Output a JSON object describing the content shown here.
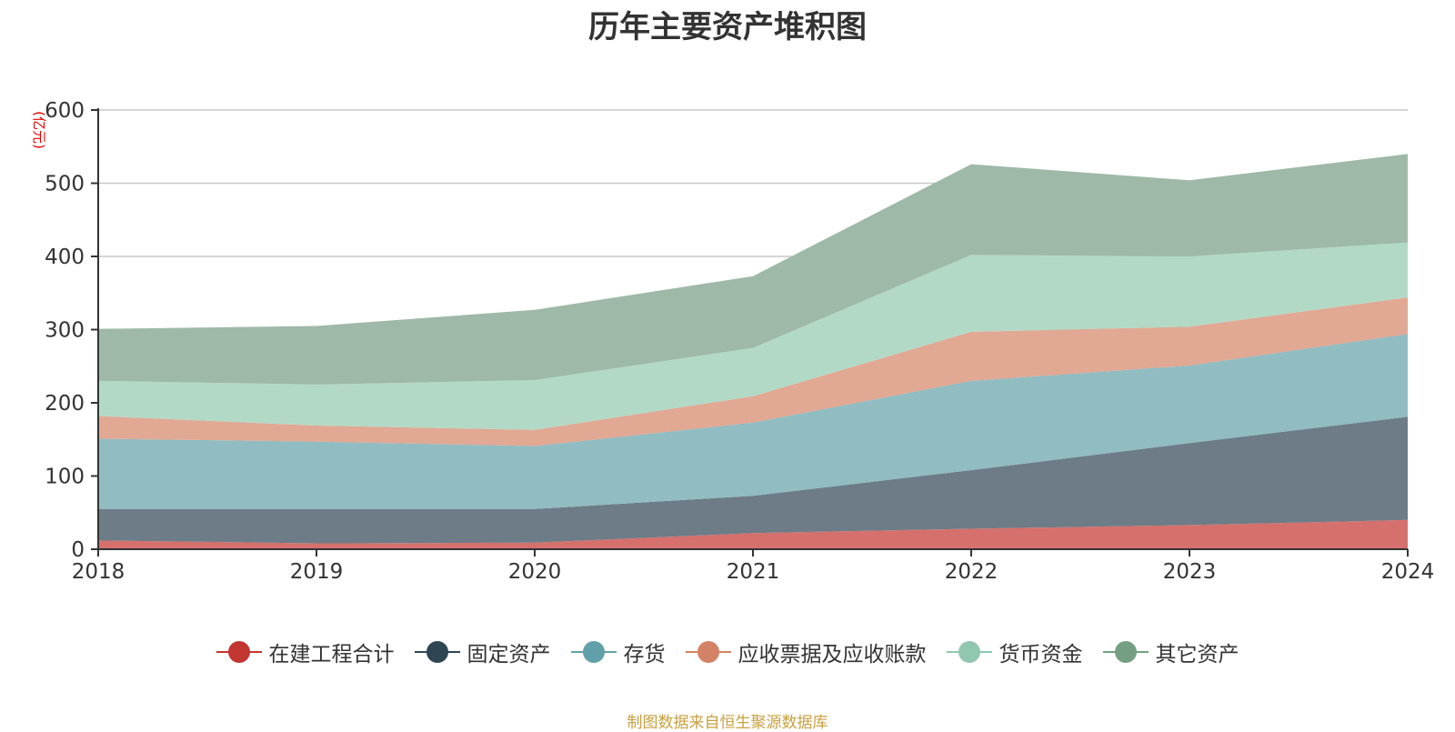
{
  "chart_data": {
    "type": "area",
    "stacked": true,
    "title": "历年主要资产堆积图",
    "unit_label": "(亿元)",
    "x": [
      "2018",
      "2019",
      "2020",
      "2021",
      "2022",
      "2023",
      "2024"
    ],
    "ylim": [
      0,
      600
    ],
    "yticks": [
      "0",
      "100",
      "200",
      "300",
      "400",
      "500",
      "600"
    ],
    "grid": true,
    "legend_position": "bottom",
    "series": [
      {
        "name": "在建工程合计",
        "color": "#c23531",
        "area_color": "#d5706d",
        "values": [
          12,
          8,
          9,
          22,
          28,
          33,
          40
        ]
      },
      {
        "name": "固定资产",
        "color": "#2f4554",
        "area_color": "#6d7c87",
        "values": [
          43,
          47,
          46,
          51,
          80,
          112,
          141
        ]
      },
      {
        "name": "存货",
        "color": "#61a0a8",
        "area_color": "#90bcc2",
        "values": [
          96,
          92,
          86,
          100,
          122,
          106,
          113
        ]
      },
      {
        "name": "应收票据及应收账款",
        "color": "#d48265",
        "area_color": "#e1a893",
        "values": [
          31,
          22,
          22,
          36,
          67,
          53,
          50
        ]
      },
      {
        "name": "货币资金",
        "color": "#91c7ae",
        "area_color": "#b2d9c6",
        "values": [
          48,
          56,
          68,
          66,
          105,
          96,
          75
        ]
      },
      {
        "name": "其它资产",
        "color": "#749f83",
        "area_color": "#9eb9a8",
        "values": [
          71,
          80,
          96,
          98,
          124,
          104,
          121
        ]
      }
    ]
  },
  "source_note": "制图数据来自恒生聚源数据库"
}
